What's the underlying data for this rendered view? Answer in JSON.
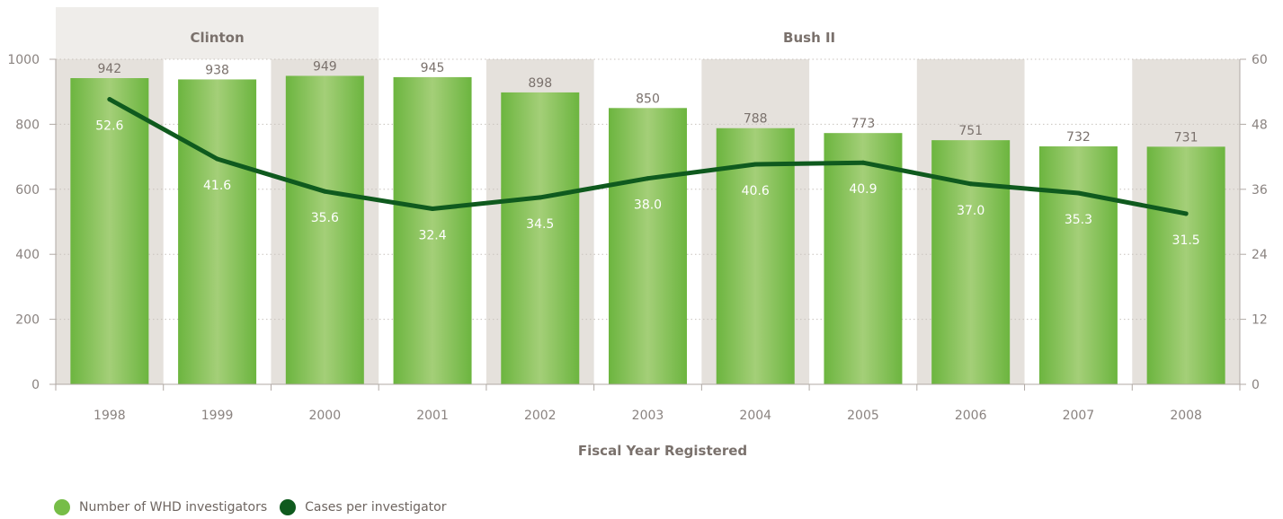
{
  "chart_data": {
    "type": "bar",
    "categories": [
      "1998",
      "1999",
      "2000",
      "2001",
      "2002",
      "2003",
      "2004",
      "2005",
      "2006",
      "2007",
      "2008"
    ],
    "series": [
      {
        "name": "Number of WHD investigators",
        "type": "bar",
        "axis": "left",
        "values": [
          942,
          938,
          949,
          945,
          898,
          850,
          788,
          773,
          751,
          732,
          731
        ],
        "labels": [
          "942",
          "938",
          "949",
          "945",
          "898",
          "850",
          "788",
          "773",
          "751",
          "732",
          "731"
        ]
      },
      {
        "name": "Cases per investigator",
        "type": "line",
        "axis": "right",
        "values": [
          52.6,
          41.6,
          35.6,
          32.4,
          34.5,
          38.0,
          40.6,
          40.9,
          37.0,
          35.3,
          31.5
        ],
        "labels": [
          "52.6",
          "41.6",
          "35.6",
          "32.4",
          "34.5",
          "38.0",
          "40.6",
          "40.9",
          "37.0",
          "35.3",
          "31.5"
        ]
      }
    ],
    "xlabel": "Fiscal Year Registered",
    "y_left": {
      "range": [
        0,
        1000
      ],
      "ticks": [
        "0",
        "200",
        "400",
        "600",
        "800",
        "1000"
      ]
    },
    "y_right": {
      "range": [
        0,
        60
      ],
      "ticks": [
        "0",
        "12",
        "24",
        "36",
        "48",
        "60"
      ]
    },
    "eras": [
      {
        "label": "Clinton",
        "from": "1998",
        "to": "2000"
      },
      {
        "label": "Bush II",
        "from": "2001",
        "to": "2008"
      }
    ],
    "shaded_years": [
      "1998",
      "2000",
      "2002",
      "2004",
      "2006",
      "2008"
    ],
    "grid": "dotted horizontal",
    "legend_position": "bottom-left",
    "colors": {
      "bar_light": "#a6d079",
      "bar_dark": "#6bb43f",
      "line": "#0f5a1e",
      "band": "#e5e1dc",
      "clinton_header": "#efedea",
      "axis": "#b0a9a4",
      "text": "#7a716c"
    }
  },
  "legend": {
    "items": [
      {
        "label": "Number of WHD investigators",
        "color": "#76bd47"
      },
      {
        "label": "Cases per investigator",
        "color": "#0f5a1e"
      }
    ]
  }
}
